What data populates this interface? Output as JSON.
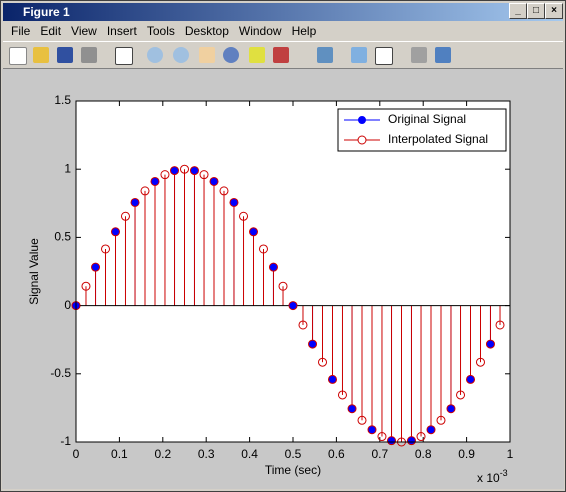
{
  "window": {
    "title": "Figure 1",
    "menu": [
      "File",
      "Edit",
      "View",
      "Insert",
      "Tools",
      "Desktop",
      "Window",
      "Help"
    ]
  },
  "chart_data": {
    "type": "stem",
    "xlabel": "Time (sec)",
    "ylabel": "Signal Value",
    "x_multiplier": {
      "base": "x 10",
      "exponent": "-3"
    },
    "xlim": [
      0,
      1
    ],
    "ylim": [
      -1,
      1.5
    ],
    "xticks": [
      0,
      0.1,
      0.2,
      0.3,
      0.4,
      0.5,
      0.6,
      0.7,
      0.8,
      0.9,
      1
    ],
    "yticks": [
      -1,
      -0.5,
      0,
      0.5,
      1,
      1.5
    ],
    "legend": "upper right",
    "series": [
      {
        "name": "Original Signal",
        "color": "#0000ff",
        "filled": true,
        "x": [
          0,
          0.045,
          0.091,
          0.136,
          0.182,
          0.227,
          0.273,
          0.318,
          0.364,
          0.409,
          0.455,
          0.5,
          0.545,
          0.591,
          0.636,
          0.682,
          0.727,
          0.773,
          0.818,
          0.864,
          0.909,
          0.955
        ],
        "values": [
          0,
          0.282,
          0.541,
          0.756,
          0.91,
          0.99,
          0.99,
          0.91,
          0.756,
          0.541,
          0.282,
          0,
          -0.282,
          -0.541,
          -0.756,
          -0.91,
          -0.99,
          -0.99,
          -0.91,
          -0.756,
          -0.541,
          -0.282
        ]
      },
      {
        "name": "Interpolated Signal",
        "color": "#cc0000",
        "filled": false,
        "x": [
          0,
          0.023,
          0.045,
          0.068,
          0.091,
          0.114,
          0.136,
          0.159,
          0.182,
          0.205,
          0.227,
          0.25,
          0.273,
          0.295,
          0.318,
          0.341,
          0.364,
          0.386,
          0.409,
          0.432,
          0.455,
          0.477,
          0.5,
          0.523,
          0.545,
          0.568,
          0.591,
          0.614,
          0.636,
          0.659,
          0.682,
          0.705,
          0.727,
          0.75,
          0.773,
          0.795,
          0.818,
          0.841,
          0.864,
          0.886,
          0.909,
          0.932,
          0.955,
          0.977
        ],
        "values": [
          0,
          0.142,
          0.282,
          0.415,
          0.541,
          0.655,
          0.756,
          0.841,
          0.91,
          0.96,
          0.99,
          1,
          0.99,
          0.96,
          0.91,
          0.841,
          0.756,
          0.655,
          0.541,
          0.415,
          0.282,
          0.142,
          0,
          -0.142,
          -0.282,
          -0.415,
          -0.541,
          -0.655,
          -0.756,
          -0.841,
          -0.91,
          -0.96,
          -0.99,
          -1,
          -0.99,
          -0.96,
          -0.91,
          -0.841,
          -0.756,
          -0.655,
          -0.541,
          -0.415,
          -0.282,
          -0.142
        ]
      }
    ]
  }
}
